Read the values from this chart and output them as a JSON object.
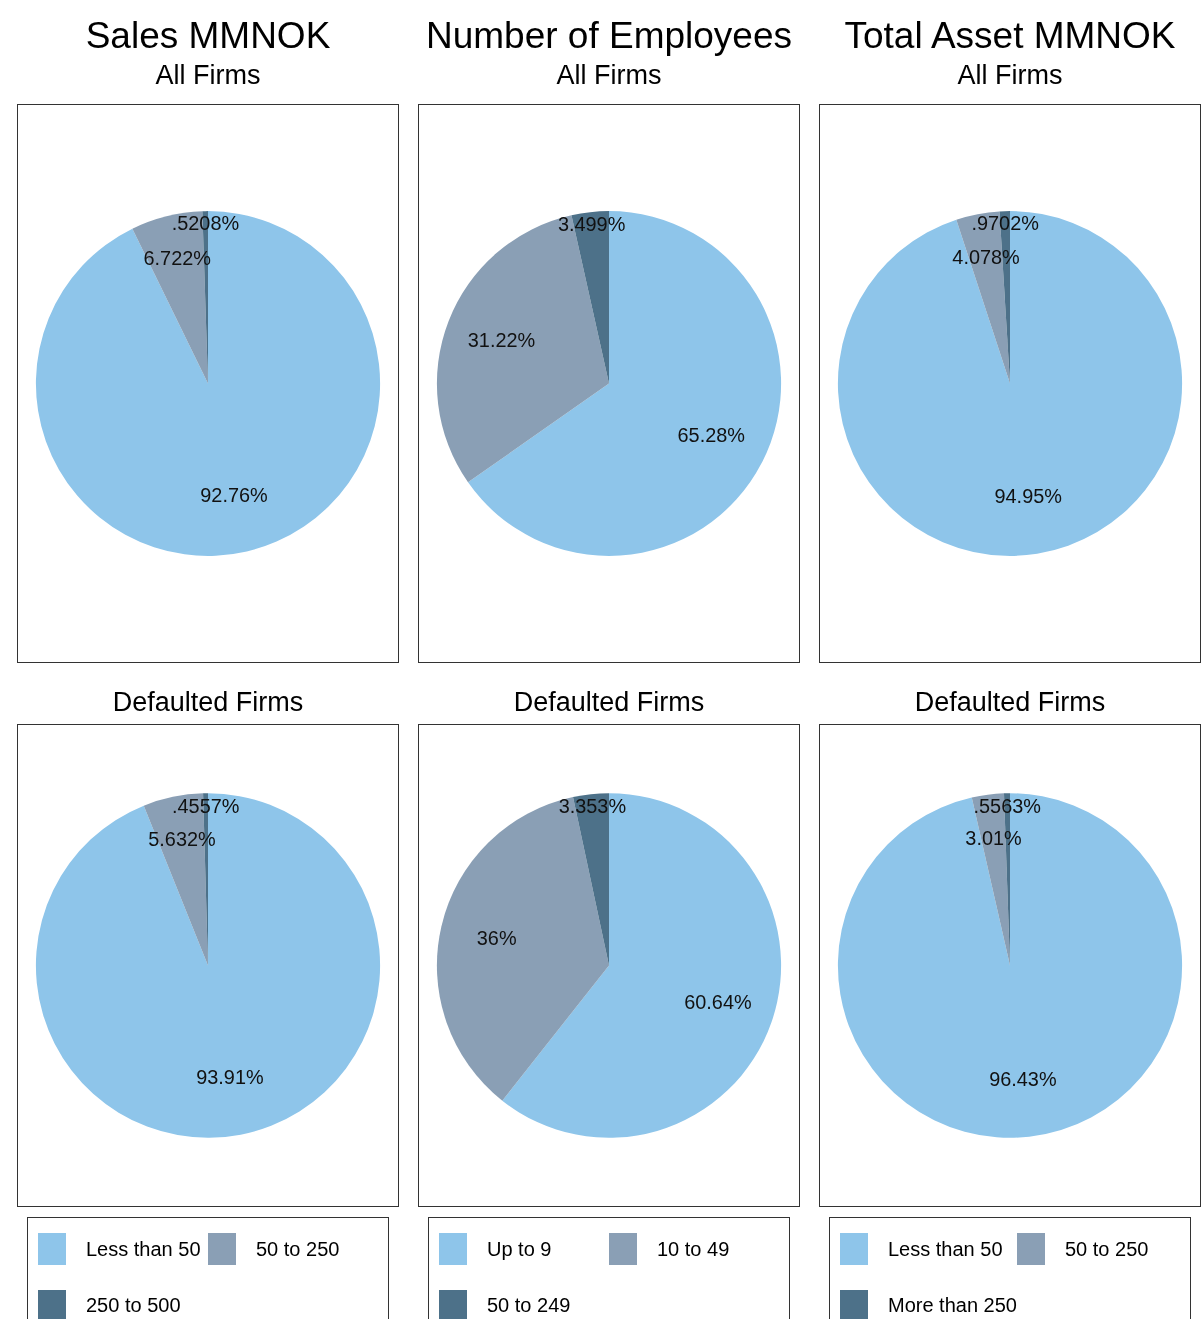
{
  "chart_data": [
    {
      "type": "pie",
      "title": "Sales MMNOK",
      "subtitle": "All Firms",
      "categories": [
        null,
        null,
        null
      ],
      "values": [
        92.76,
        6.722,
        0.5208
      ],
      "colors": [
        "#8ec5ea",
        "#8a9fb5",
        "#4d7189"
      ],
      "value_labels": [
        "92.76%",
        "6.722%",
        ".5208%"
      ],
      "legend": false
    },
    {
      "type": "pie",
      "title": "Number of Employees",
      "subtitle": "All Firms",
      "categories": [
        null,
        null,
        null
      ],
      "values": [
        65.28,
        31.22,
        3.499
      ],
      "colors": [
        "#8ec5ea",
        "#8a9fb5",
        "#4d7189"
      ],
      "value_labels": [
        "65.28%",
        "31.22%",
        "3.499%"
      ],
      "legend": false
    },
    {
      "type": "pie",
      "title": "Total Asset MMNOK",
      "subtitle": "All Firms",
      "categories": [
        null,
        null,
        null
      ],
      "values": [
        94.95,
        4.078,
        0.9702
      ],
      "colors": [
        "#8ec5ea",
        "#8a9fb5",
        "#4d7189"
      ],
      "value_labels": [
        "94.95%",
        "4.078%",
        ".9702%"
      ],
      "legend": false
    },
    {
      "type": "pie",
      "subtitle": "Defaulted Firms",
      "categories": [
        "Less than 50",
        "50 to 250",
        "250 to 500"
      ],
      "values": [
        93.91,
        5.632,
        0.4557
      ],
      "colors": [
        "#8ec5ea",
        "#8a9fb5",
        "#4d7189"
      ],
      "value_labels": [
        "93.91%",
        "5.632%",
        ".4557%"
      ],
      "legend": "bottom"
    },
    {
      "type": "pie",
      "subtitle": "Defaulted Firms",
      "categories": [
        "Up to 9",
        "10 to 49",
        "50 to 249"
      ],
      "values": [
        60.64,
        36,
        3.353
      ],
      "colors": [
        "#8ec5ea",
        "#8a9fb5",
        "#4d7189"
      ],
      "value_labels": [
        "60.64%",
        "36%",
        "3.353%"
      ],
      "legend": "bottom"
    },
    {
      "type": "pie",
      "subtitle": "Defaulted Firms",
      "categories": [
        "Less than 50",
        "50 to 250",
        "More than 250"
      ],
      "values": [
        96.43,
        3.01,
        0.5563
      ],
      "colors": [
        "#8ec5ea",
        "#8a9fb5",
        "#4d7189"
      ],
      "value_labels": [
        "96.43%",
        "3.01%",
        ".5563%"
      ],
      "legend": "bottom"
    }
  ]
}
